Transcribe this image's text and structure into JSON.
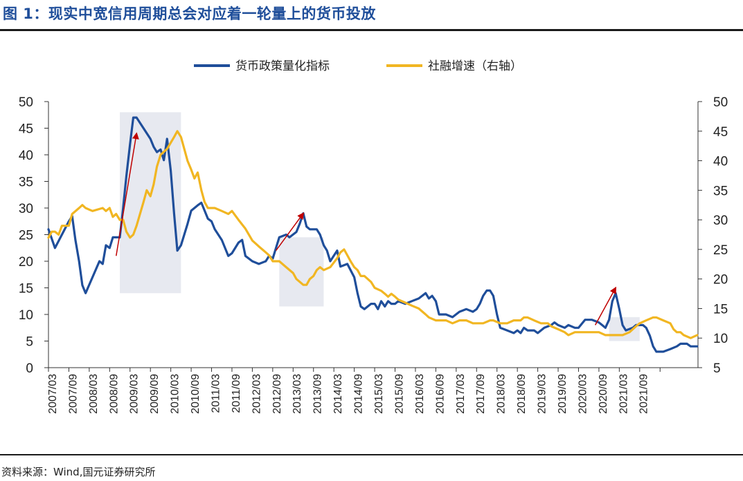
{
  "title": "图 1：现实中宽信用周期总会对应着一轮量上的货币投放",
  "source": "资料来源：Wind,国元证券研究所",
  "chart_data": {
    "type": "line",
    "title": "图 1：现实中宽信用周期总会对应着一轮量上的货币投放",
    "xlabel": "",
    "ylabel": "",
    "legend_position": "top-center",
    "grid": false,
    "x_tick_labels": [
      "2007/03",
      "2007/09",
      "2008/03",
      "2008/09",
      "2009/03",
      "2009/09",
      "2010/03",
      "2010/09",
      "2011/03",
      "2011/09",
      "2012/03",
      "2012/09",
      "2013/03",
      "2013/09",
      "2014/03",
      "2014/09",
      "2015/03",
      "2015/09",
      "2016/03",
      "2016/09",
      "2017/03",
      "2017/09",
      "2018/03",
      "2018/09",
      "2019/03",
      "2019/09",
      "2020/03",
      "2020/09",
      "2021/03",
      "2021/09"
    ],
    "y_left": {
      "min": 0,
      "max": 50,
      "ticks": [
        0,
        5,
        10,
        15,
        20,
        25,
        30,
        35,
        40,
        45,
        50
      ]
    },
    "y_right": {
      "min": 5,
      "max": 50,
      "ticks": [
        5,
        10,
        15,
        20,
        25,
        30,
        35,
        40,
        45,
        50
      ]
    },
    "series": [
      {
        "name": "货币政策量化指标",
        "axis": "left",
        "color": "#1f4e9a",
        "points": [
          [
            2007.17,
            26
          ],
          [
            2007.33,
            22.5
          ],
          [
            2007.5,
            25
          ],
          [
            2007.67,
            27.5
          ],
          [
            2007.75,
            28.5
          ],
          [
            2007.83,
            24
          ],
          [
            2007.92,
            20
          ],
          [
            2008.0,
            15.5
          ],
          [
            2008.08,
            14
          ],
          [
            2008.25,
            17
          ],
          [
            2008.42,
            20
          ],
          [
            2008.5,
            19.5
          ],
          [
            2008.58,
            23
          ],
          [
            2008.67,
            22.5
          ],
          [
            2008.75,
            24.5
          ],
          [
            2008.92,
            24.5
          ],
          [
            2009.0,
            30
          ],
          [
            2009.08,
            36
          ],
          [
            2009.17,
            42
          ],
          [
            2009.25,
            47
          ],
          [
            2009.33,
            47
          ],
          [
            2009.5,
            45
          ],
          [
            2009.67,
            43
          ],
          [
            2009.75,
            41.5
          ],
          [
            2009.83,
            40.5
          ],
          [
            2009.92,
            41
          ],
          [
            2010.0,
            39
          ],
          [
            2010.08,
            43
          ],
          [
            2010.17,
            37
          ],
          [
            2010.25,
            29
          ],
          [
            2010.33,
            22
          ],
          [
            2010.42,
            23
          ],
          [
            2010.58,
            27
          ],
          [
            2010.67,
            29.5
          ],
          [
            2010.83,
            30.5
          ],
          [
            2010.92,
            31
          ],
          [
            2011.08,
            28
          ],
          [
            2011.17,
            27.5
          ],
          [
            2011.25,
            26
          ],
          [
            2011.42,
            24
          ],
          [
            2011.58,
            21
          ],
          [
            2011.67,
            21.5
          ],
          [
            2011.83,
            23.5
          ],
          [
            2011.92,
            24
          ],
          [
            2012.0,
            21
          ],
          [
            2012.17,
            20
          ],
          [
            2012.33,
            19.5
          ],
          [
            2012.5,
            20
          ],
          [
            2012.58,
            21
          ],
          [
            2012.67,
            20.5
          ],
          [
            2012.83,
            24.5
          ],
          [
            2013.0,
            25
          ],
          [
            2013.08,
            24.5
          ],
          [
            2013.25,
            25.5
          ],
          [
            2013.33,
            27
          ],
          [
            2013.42,
            29
          ],
          [
            2013.5,
            26.5
          ],
          [
            2013.58,
            26
          ],
          [
            2013.75,
            26
          ],
          [
            2013.83,
            25
          ],
          [
            2013.92,
            23
          ],
          [
            2014.0,
            22
          ],
          [
            2014.08,
            20
          ],
          [
            2014.25,
            22
          ],
          [
            2014.33,
            19
          ],
          [
            2014.5,
            19.5
          ],
          [
            2014.67,
            17
          ],
          [
            2014.75,
            14
          ],
          [
            2014.83,
            11.5
          ],
          [
            2014.92,
            11
          ],
          [
            2015.08,
            12
          ],
          [
            2015.17,
            12
          ],
          [
            2015.25,
            11
          ],
          [
            2015.33,
            12.5
          ],
          [
            2015.42,
            11.5
          ],
          [
            2015.5,
            12.5
          ],
          [
            2015.58,
            12
          ],
          [
            2015.67,
            12
          ],
          [
            2015.75,
            12.5
          ],
          [
            2015.92,
            12
          ],
          [
            2016.08,
            12.5
          ],
          [
            2016.25,
            13
          ],
          [
            2016.42,
            14
          ],
          [
            2016.5,
            13
          ],
          [
            2016.58,
            13.5
          ],
          [
            2016.67,
            12.5
          ],
          [
            2016.75,
            10
          ],
          [
            2016.92,
            10
          ],
          [
            2017.08,
            9.5
          ],
          [
            2017.25,
            10.5
          ],
          [
            2017.42,
            11
          ],
          [
            2017.58,
            10.5
          ],
          [
            2017.67,
            11
          ],
          [
            2017.75,
            12
          ],
          [
            2017.83,
            13.5
          ],
          [
            2017.92,
            14.5
          ],
          [
            2018.0,
            14.5
          ],
          [
            2018.08,
            13.5
          ],
          [
            2018.17,
            10
          ],
          [
            2018.25,
            7.5
          ],
          [
            2018.42,
            7
          ],
          [
            2018.58,
            6.5
          ],
          [
            2018.67,
            7
          ],
          [
            2018.75,
            6.5
          ],
          [
            2018.83,
            7.5
          ],
          [
            2018.92,
            7
          ],
          [
            2019.08,
            7
          ],
          [
            2019.17,
            6.5
          ],
          [
            2019.33,
            7.5
          ],
          [
            2019.5,
            8
          ],
          [
            2019.58,
            8.5
          ],
          [
            2019.67,
            8
          ],
          [
            2019.83,
            7.5
          ],
          [
            2019.92,
            8
          ],
          [
            2020.08,
            7.5
          ],
          [
            2020.17,
            7.5
          ],
          [
            2020.33,
            9
          ],
          [
            2020.5,
            9
          ],
          [
            2020.67,
            8.5
          ],
          [
            2020.75,
            8
          ],
          [
            2020.83,
            7.5
          ],
          [
            2020.92,
            9
          ],
          [
            2021.0,
            12.5
          ],
          [
            2021.08,
            14
          ],
          [
            2021.17,
            11
          ],
          [
            2021.25,
            8
          ],
          [
            2021.33,
            7
          ],
          [
            2021.5,
            7.5
          ],
          [
            2021.58,
            8
          ],
          [
            2021.67,
            8
          ],
          [
            2021.75,
            8
          ],
          [
            2021.83,
            7.5
          ],
          [
            2021.92,
            6
          ],
          [
            2022.0,
            4
          ],
          [
            2022.08,
            3
          ],
          [
            2022.25,
            3
          ],
          [
            2022.42,
            3.5
          ],
          [
            2022.58,
            4
          ],
          [
            2022.67,
            4.5
          ],
          [
            2022.83,
            4.5
          ],
          [
            2022.92,
            4
          ],
          [
            2023.08,
            4
          ]
        ]
      },
      {
        "name": "社融增速（右轴）",
        "axis": "right",
        "color": "#f1b622",
        "points": [
          [
            2007.17,
            27
          ],
          [
            2007.25,
            28
          ],
          [
            2007.33,
            28
          ],
          [
            2007.42,
            27.5
          ],
          [
            2007.5,
            29
          ],
          [
            2007.67,
            29
          ],
          [
            2007.75,
            31
          ],
          [
            2007.92,
            32
          ],
          [
            2008.0,
            32.5
          ],
          [
            2008.08,
            32
          ],
          [
            2008.25,
            31.5
          ],
          [
            2008.5,
            32
          ],
          [
            2008.58,
            31.5
          ],
          [
            2008.67,
            32
          ],
          [
            2008.75,
            30.5
          ],
          [
            2008.83,
            31
          ],
          [
            2008.92,
            30
          ],
          [
            2009.0,
            30
          ],
          [
            2009.08,
            28
          ],
          [
            2009.17,
            27
          ],
          [
            2009.25,
            27.5
          ],
          [
            2009.33,
            29
          ],
          [
            2009.5,
            33
          ],
          [
            2009.58,
            35
          ],
          [
            2009.67,
            34
          ],
          [
            2009.75,
            36
          ],
          [
            2009.83,
            39
          ],
          [
            2009.92,
            41
          ],
          [
            2010.0,
            41.5
          ],
          [
            2010.08,
            42
          ],
          [
            2010.25,
            44
          ],
          [
            2010.33,
            45
          ],
          [
            2010.42,
            44
          ],
          [
            2010.5,
            42
          ],
          [
            2010.58,
            40
          ],
          [
            2010.67,
            38.5
          ],
          [
            2010.75,
            37
          ],
          [
            2010.83,
            38
          ],
          [
            2010.92,
            35
          ],
          [
            2011.0,
            33
          ],
          [
            2011.08,
            32
          ],
          [
            2011.25,
            32
          ],
          [
            2011.42,
            31.5
          ],
          [
            2011.58,
            31
          ],
          [
            2011.67,
            31.5
          ],
          [
            2011.83,
            30
          ],
          [
            2012.0,
            28.5
          ],
          [
            2012.17,
            26.5
          ],
          [
            2012.33,
            25.5
          ],
          [
            2012.5,
            24.5
          ],
          [
            2012.58,
            24
          ],
          [
            2012.67,
            23
          ],
          [
            2012.83,
            23
          ],
          [
            2013.0,
            22
          ],
          [
            2013.17,
            21
          ],
          [
            2013.25,
            20
          ],
          [
            2013.42,
            19
          ],
          [
            2013.5,
            19
          ],
          [
            2013.58,
            20
          ],
          [
            2013.67,
            20.5
          ],
          [
            2013.75,
            21.5
          ],
          [
            2013.83,
            22
          ],
          [
            2013.92,
            21.5
          ],
          [
            2014.08,
            22
          ],
          [
            2014.25,
            23.5
          ],
          [
            2014.33,
            24.5
          ],
          [
            2014.42,
            25
          ],
          [
            2014.5,
            24
          ],
          [
            2014.58,
            23
          ],
          [
            2014.67,
            22
          ],
          [
            2014.75,
            21.5
          ],
          [
            2014.83,
            20.5
          ],
          [
            2014.92,
            20.5
          ],
          [
            2015.08,
            19.5
          ],
          [
            2015.17,
            18.5
          ],
          [
            2015.33,
            18
          ],
          [
            2015.42,
            17.5
          ],
          [
            2015.5,
            17
          ],
          [
            2015.58,
            17.5
          ],
          [
            2015.67,
            17
          ],
          [
            2015.75,
            16.5
          ],
          [
            2015.92,
            16
          ],
          [
            2016.08,
            15.5
          ],
          [
            2016.25,
            15
          ],
          [
            2016.42,
            14
          ],
          [
            2016.5,
            13.5
          ],
          [
            2016.67,
            13
          ],
          [
            2016.83,
            13
          ],
          [
            2016.92,
            13
          ],
          [
            2017.08,
            12.5
          ],
          [
            2017.25,
            13
          ],
          [
            2017.42,
            13
          ],
          [
            2017.58,
            12.5
          ],
          [
            2017.67,
            12.5
          ],
          [
            2017.83,
            12.5
          ],
          [
            2018.0,
            13
          ],
          [
            2018.08,
            13
          ],
          [
            2018.25,
            12.5
          ],
          [
            2018.42,
            12.5
          ],
          [
            2018.58,
            13
          ],
          [
            2018.75,
            13
          ],
          [
            2018.83,
            13.5
          ],
          [
            2018.92,
            13.5
          ],
          [
            2019.08,
            13
          ],
          [
            2019.25,
            12.5
          ],
          [
            2019.42,
            12.5
          ],
          [
            2019.5,
            12
          ],
          [
            2019.67,
            11.5
          ],
          [
            2019.83,
            11
          ],
          [
            2019.92,
            10.5
          ],
          [
            2020.08,
            11
          ],
          [
            2020.25,
            11
          ],
          [
            2020.42,
            11
          ],
          [
            2020.5,
            11
          ],
          [
            2020.67,
            11
          ],
          [
            2020.83,
            10.5
          ],
          [
            2020.92,
            10.5
          ],
          [
            2021.08,
            10.5
          ],
          [
            2021.25,
            10.5
          ],
          [
            2021.42,
            11
          ],
          [
            2021.58,
            12
          ],
          [
            2021.67,
            12.5
          ],
          [
            2021.83,
            13
          ],
          [
            2022.0,
            13.5
          ],
          [
            2022.08,
            13.5
          ],
          [
            2022.25,
            13
          ],
          [
            2022.42,
            12.5
          ],
          [
            2022.5,
            11.5
          ],
          [
            2022.58,
            11
          ],
          [
            2022.67,
            11
          ],
          [
            2022.75,
            10.5
          ],
          [
            2022.92,
            10
          ],
          [
            2023.08,
            10.5
          ]
        ]
      }
    ],
    "annotation_color": "#c00000",
    "annotation_arrows": [
      {
        "from": [
          2008.83,
          21
        ],
        "to": [
          2009.33,
          44
        ]
      },
      {
        "from": [
          2012.75,
          22
        ],
        "to": [
          2013.42,
          29
        ]
      },
      {
        "from": [
          2020.58,
          8
        ],
        "to": [
          2021.08,
          15
        ]
      }
    ],
    "shaded_periods": [
      {
        "x0": 2008.92,
        "x1": 2010.42,
        "y0": 14,
        "y1": 48
      },
      {
        "x0": 2012.83,
        "x1": 2013.92,
        "y0": 11.5,
        "y1": 24.5
      },
      {
        "x0": 2020.92,
        "x1": 2021.67,
        "y0": 5,
        "y1": 9.5
      }
    ]
  }
}
